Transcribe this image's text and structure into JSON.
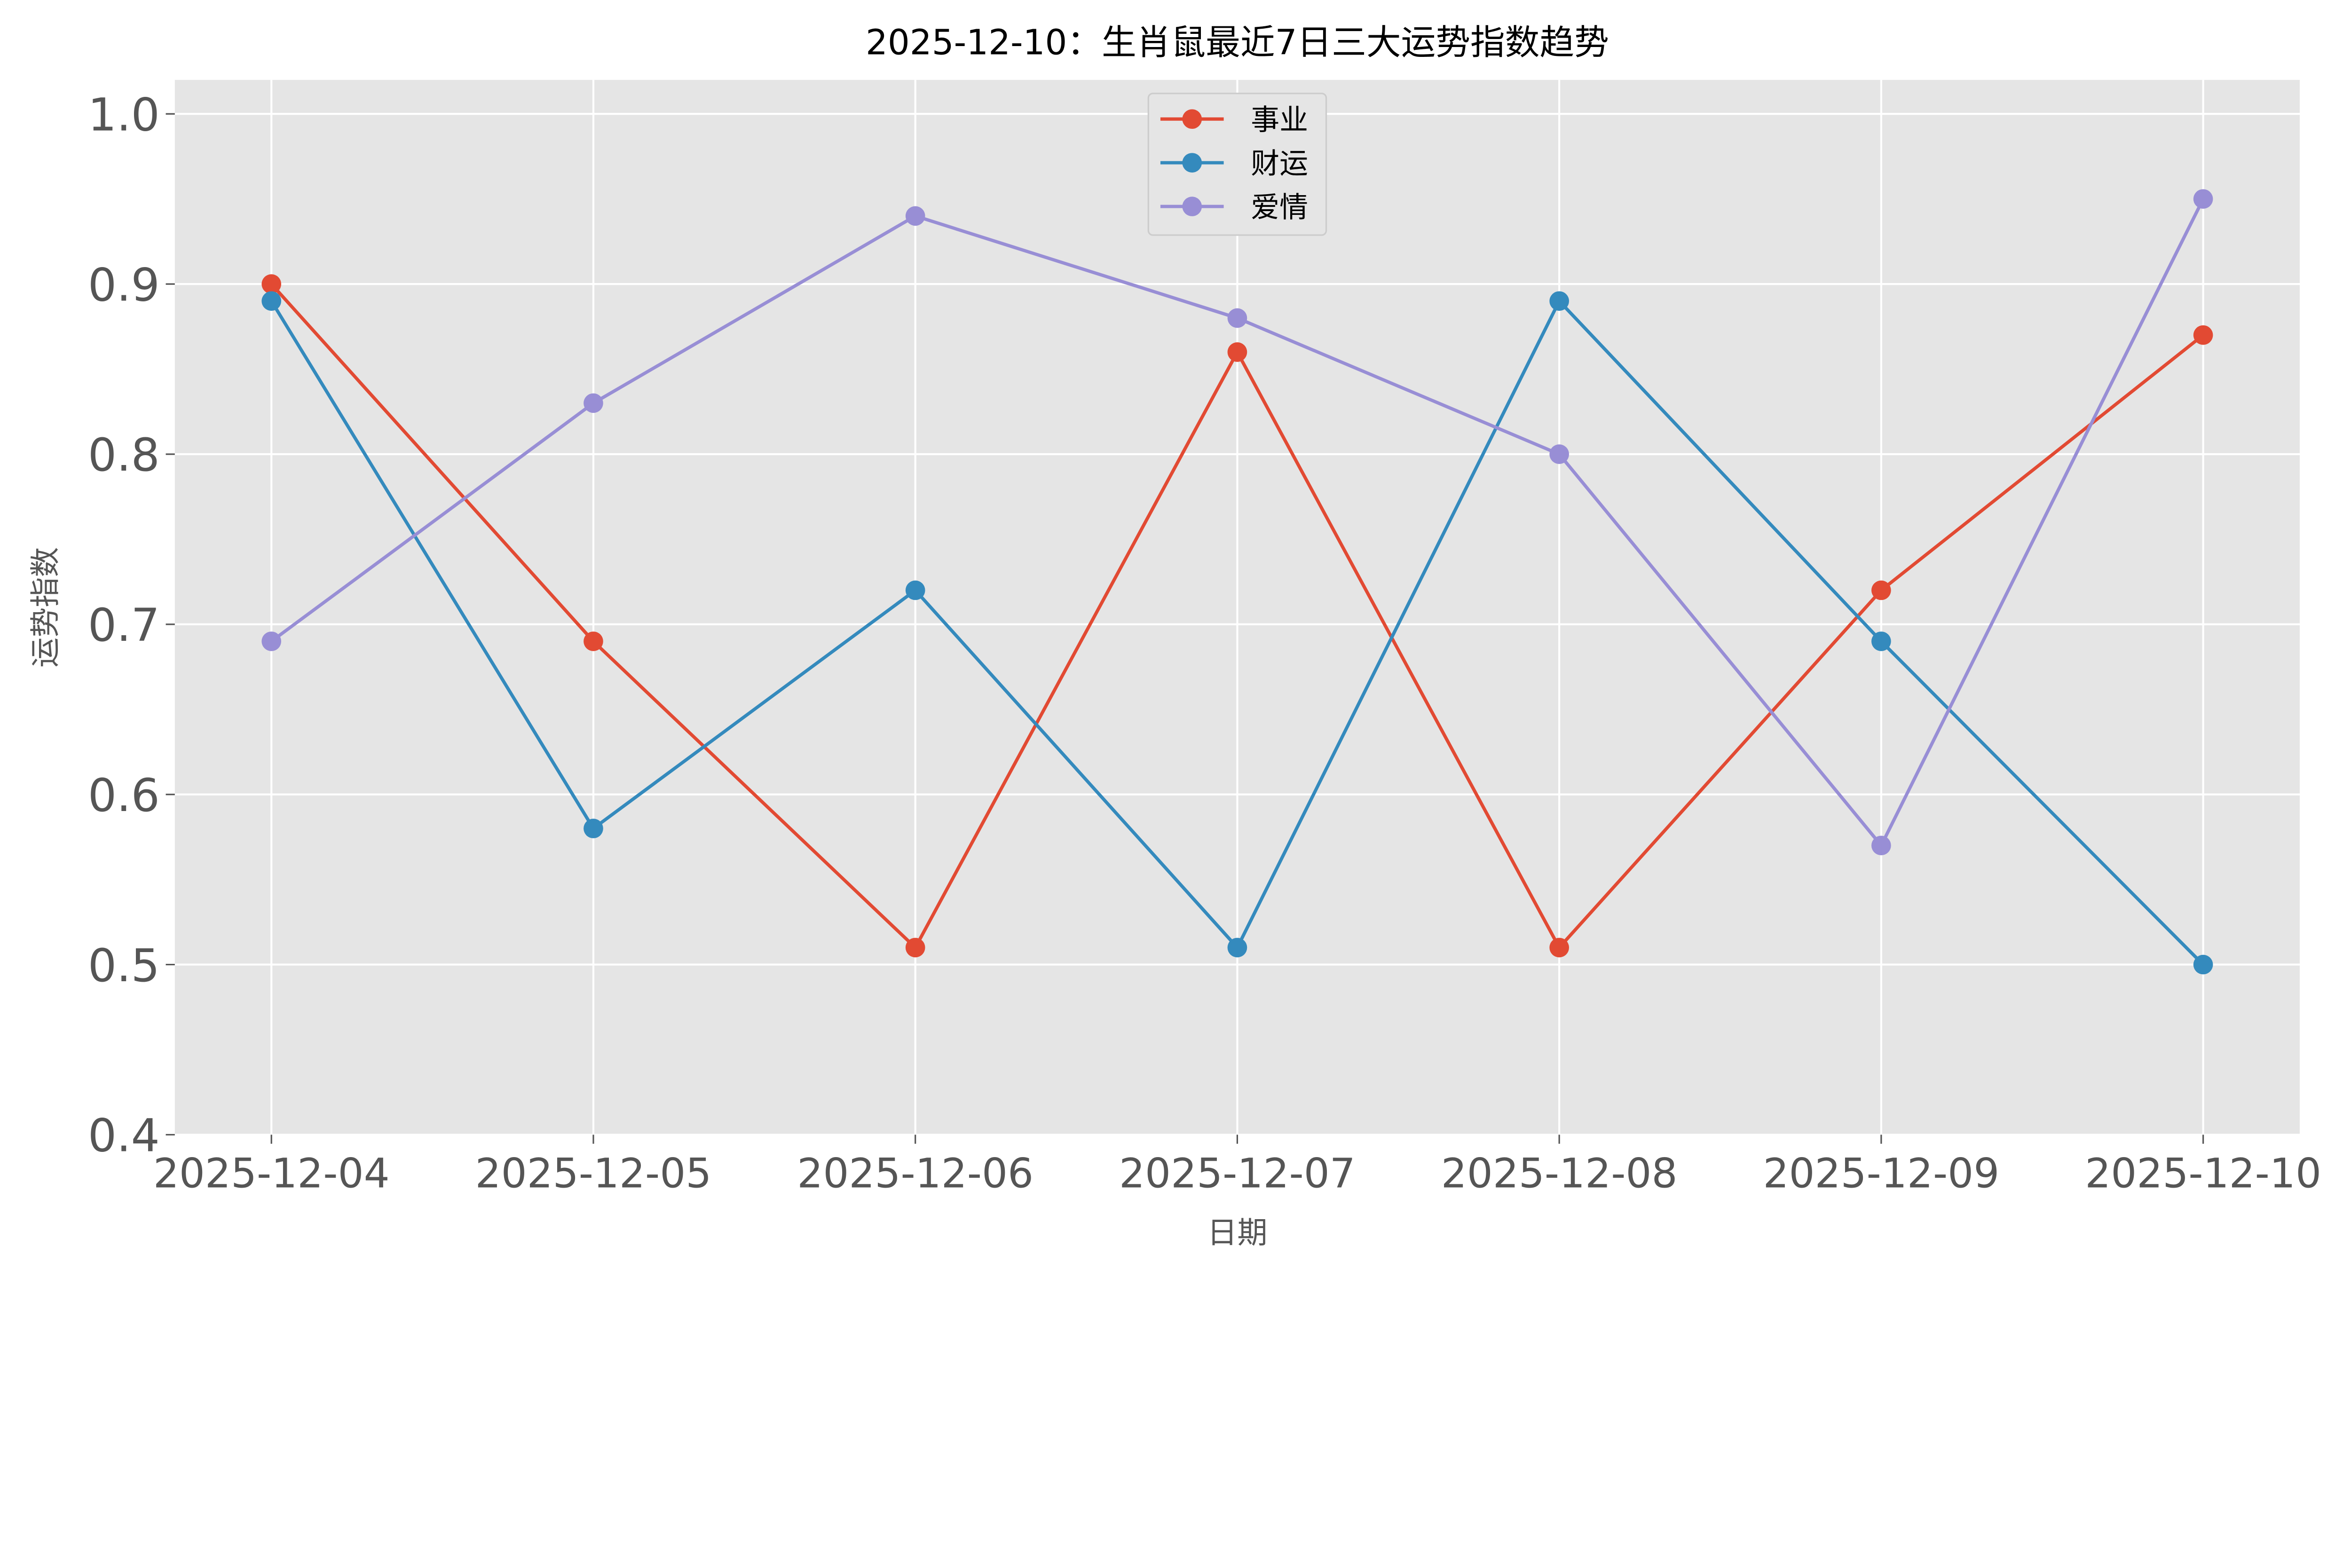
{
  "chart_data": {
    "type": "line",
    "title": "2025-12-10：生肖鼠最近7日三大运势指数趋势",
    "xlabel": "日期",
    "ylabel": "运势指数",
    "categories": [
      "2025-12-04",
      "2025-12-05",
      "2025-12-06",
      "2025-12-07",
      "2025-12-08",
      "2025-12-09",
      "2025-12-10"
    ],
    "ylim": [
      0.4,
      1.02
    ],
    "yticks": [
      0.4,
      0.5,
      0.6,
      0.7,
      0.8,
      0.9,
      1.0
    ],
    "ytick_labels": [
      "0.4",
      "0.5",
      "0.6",
      "0.7",
      "0.8",
      "0.9",
      "1.0"
    ],
    "grid": true,
    "legend_position": "top-center",
    "background": "#e5e5e5",
    "series": [
      {
        "name": "事业",
        "color": "#e24a33",
        "values": [
          0.9,
          0.69,
          0.51,
          0.86,
          0.51,
          0.72,
          0.87
        ]
      },
      {
        "name": "财运",
        "color": "#348abd",
        "values": [
          0.89,
          0.58,
          0.72,
          0.51,
          0.89,
          0.69,
          0.5
        ]
      },
      {
        "name": "爱情",
        "color": "#988ed5",
        "values": [
          0.69,
          0.83,
          0.94,
          0.88,
          0.8,
          0.57,
          0.95
        ]
      }
    ]
  }
}
